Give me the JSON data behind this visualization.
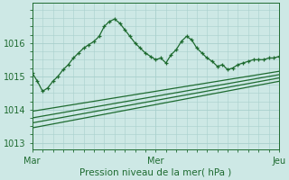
{
  "title": "Pression niveau de la mer( hPa )",
  "ylim": [
    1012.8,
    1017.2
  ],
  "xlim": [
    0,
    48
  ],
  "yticks": [
    1013,
    1014,
    1015,
    1016
  ],
  "xtick_positions": [
    0,
    24,
    48
  ],
  "xtick_labels": [
    "Mar",
    "Mer",
    "Jeu"
  ],
  "bg_color": "#cde8e5",
  "grid_color": "#a8d0cc",
  "line_color": "#1e6b30",
  "marker": "+",
  "line1_x": [
    0,
    1,
    2,
    3,
    4,
    5,
    6,
    7,
    8,
    9,
    10,
    11,
    12,
    13,
    14,
    15,
    16,
    17,
    18,
    19,
    20,
    21,
    22,
    23,
    24,
    25,
    26,
    27,
    28,
    29,
    30,
    31,
    32,
    33,
    34,
    35,
    36,
    37,
    38,
    39,
    40,
    41,
    42,
    43,
    44,
    45,
    46,
    47,
    48
  ],
  "line1_y": [
    1015.1,
    1014.85,
    1014.55,
    1014.65,
    1014.85,
    1015.0,
    1015.2,
    1015.35,
    1015.55,
    1015.7,
    1015.85,
    1015.95,
    1016.05,
    1016.2,
    1016.5,
    1016.65,
    1016.72,
    1016.6,
    1016.4,
    1016.2,
    1016.0,
    1015.85,
    1015.7,
    1015.6,
    1015.5,
    1015.55,
    1015.4,
    1015.65,
    1015.8,
    1016.05,
    1016.2,
    1016.1,
    1015.85,
    1015.7,
    1015.55,
    1015.45,
    1015.3,
    1015.35,
    1015.2,
    1015.25,
    1015.35,
    1015.4,
    1015.45,
    1015.5,
    1015.5,
    1015.5,
    1015.55,
    1015.55,
    1015.6
  ],
  "line2_x": [
    0,
    48
  ],
  "line2_y": [
    1013.95,
    1015.15
  ],
  "line3_x": [
    0,
    48
  ],
  "line3_y": [
    1013.75,
    1015.05
  ],
  "line4_x": [
    0,
    48
  ],
  "line4_y": [
    1013.6,
    1014.95
  ],
  "line5_x": [
    0,
    48
  ],
  "line5_y": [
    1013.45,
    1014.85
  ]
}
